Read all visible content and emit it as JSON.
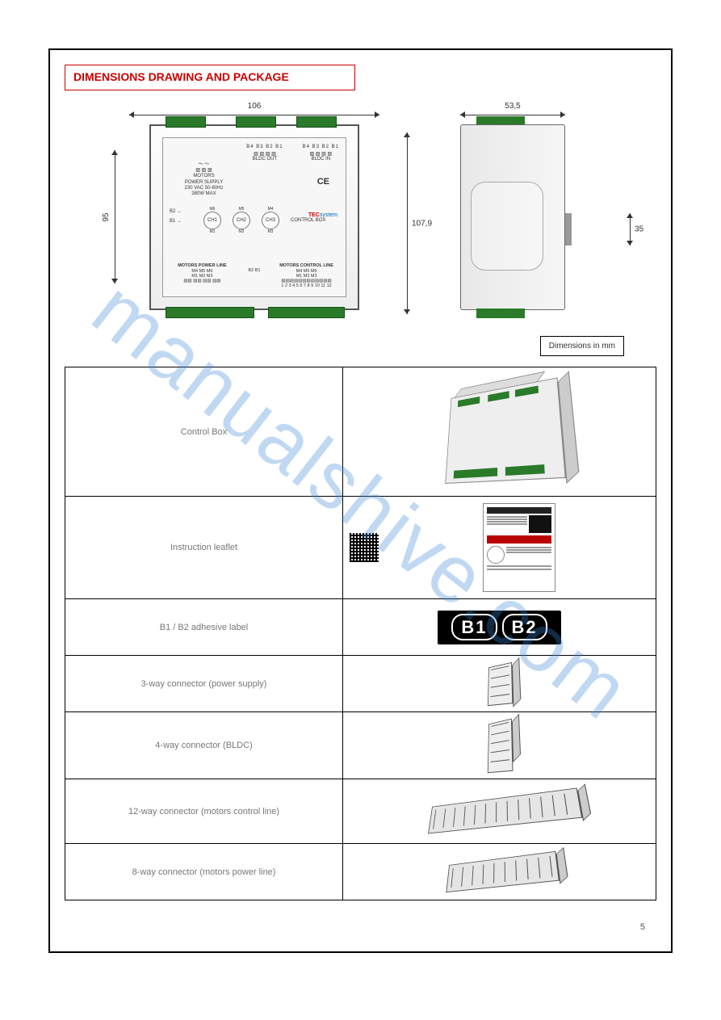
{
  "page": {
    "title": "DIMENSIONS DRAWING AND PACKAGE",
    "page_number": "5"
  },
  "unit_note": "Dimensions in mm",
  "dimensions": {
    "front_width": "106",
    "front_height": "95",
    "front_outer_height": "107,9",
    "side_depth": "53,5",
    "rail_height": "35"
  },
  "device_face": {
    "power_supply_line1": "MOTORS",
    "power_supply_line2": "POWER SUPPLY",
    "power_supply_line3": "230 VAC 50-60Hz",
    "power_supply_line4": "380W MAX",
    "bldc_out_pins": "B4 B3 B2 B1",
    "bldc_out_label": "BLDC OUT",
    "bldc_in_pins": "B4 B3 B2 B1",
    "bldc_in_label": "BLDC IN",
    "ce": "CE",
    "control_box": "CONTROL BOX",
    "b1": "B1",
    "b2": "B2",
    "m1": "M1",
    "m2": "M2",
    "m3": "M3",
    "m4": "M4",
    "m5": "M5",
    "m6": "M6",
    "ch1": "CH1",
    "ch2": "CH2",
    "ch3": "CH3",
    "logo_tec": "TEC",
    "logo_system": "system",
    "lower_left_h": "MOTORS POWER LINE",
    "lower_left_row1": "M4    M5    M6",
    "lower_left_row2": "M1    M2    M3",
    "lower_mid_b": "B2   B1",
    "lower_right_h": "MOTORS CONTROL LINE",
    "lower_right_row1": "M4        M5        M6",
    "lower_right_row2": "M1        M2        M3",
    "lower_right_nums": "1  2  3  4  5  6  7  8  9 10 11 12"
  },
  "parts": [
    {
      "label": "Control Box",
      "kind": "device3d"
    },
    {
      "label": "Instruction leaflet",
      "kind": "leaflet"
    },
    {
      "label": "B1 / B2 adhesive label",
      "kind": "b1b2"
    },
    {
      "label": "3-way connector (power supply)",
      "kind": "conn3"
    },
    {
      "label": "4-way connector (BLDC)",
      "kind": "conn4"
    },
    {
      "label": "12-way connector (motors control line)",
      "kind": "conn12"
    },
    {
      "label": "8-way connector (motors power line)",
      "kind": "conn8"
    }
  ],
  "b1b2": {
    "b1": "B1",
    "b2": "B2"
  },
  "colors": {
    "border_red": "#c00000",
    "terminal_green": "#2a7a2a",
    "watermark": "#3b86d6"
  },
  "watermark": "manualshive.com"
}
